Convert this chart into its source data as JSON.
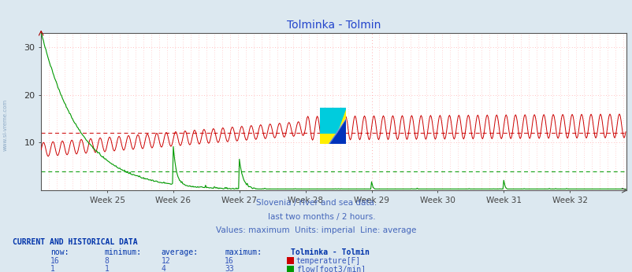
{
  "title": "Tolminka - Tolmin",
  "title_color": "#2244cc",
  "bg_color": "#dce8f0",
  "plot_bg_color": "#ffffff",
  "xlim": [
    0,
    744
  ],
  "ylim": [
    0,
    33
  ],
  "yticks": [
    10,
    20,
    30
  ],
  "weeks": [
    "Week 25",
    "Week 26",
    "Week 27",
    "Week 28",
    "Week 29",
    "Week 30",
    "Week 31",
    "Week 32"
  ],
  "week_positions": [
    84,
    168,
    252,
    336,
    420,
    504,
    588,
    672
  ],
  "grid_color": "#ffaaaa",
  "temp_color": "#cc0000",
  "flow_color": "#009900",
  "temp_avg": 12,
  "flow_avg": 4,
  "subtitle1": "Slovenia / river and sea data.",
  "subtitle2": "    last two months / 2 hours.",
  "subtitle3": "Values: maximum  Units: imperial  Line: average",
  "subtitle_color": "#4466bb",
  "table_header_color": "#0033aa",
  "table_data_color": "#3355bb",
  "table_title": "Tolminka - Tolmin",
  "temp_now": 16,
  "temp_min": 8,
  "temp_avg_val": 12,
  "temp_max": 16,
  "flow_now": 1,
  "flow_min": 1,
  "flow_avg_val": 4,
  "flow_max": 33,
  "left_label": "www.si-vreme.com",
  "left_label_color": "#7799bb"
}
